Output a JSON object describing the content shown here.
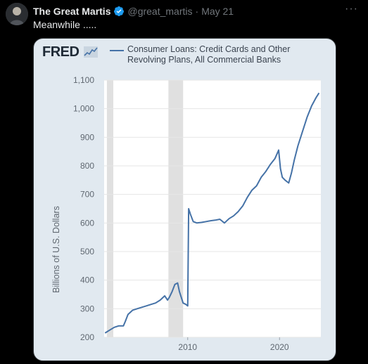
{
  "tweet": {
    "author_name": "The Great Martis",
    "handle": "@great_martis",
    "separator": "·",
    "date": "May 21",
    "text": "Meanwhile .....",
    "more_label": "···"
  },
  "colors": {
    "background": "#000000",
    "verified_badge": "#1d9bf0",
    "card_background": "#e1e9f0",
    "plot_background": "#ffffff",
    "series_line": "#4572a7",
    "recession_shade": "#e0e0e0"
  },
  "fred": {
    "logo_text": "FRED",
    "logo_mark": "spark-line-icon"
  },
  "chart_data": {
    "type": "line",
    "title": "Consumer Loans: Credit Cards and Other Revolving Plans, All Commercial Banks",
    "xlabel": "",
    "ylabel": "Billions of U.S. Dollars",
    "ylim": [
      200,
      1100
    ],
    "xlim": [
      2000.9,
      2024.5
    ],
    "y_ticks": [
      "200",
      "300",
      "400",
      "500",
      "600",
      "700",
      "800",
      "900",
      "1,000",
      "1,100"
    ],
    "x_ticks": [
      "2010",
      "2020"
    ],
    "grid": true,
    "recession_bands": [
      [
        2001.2,
        2001.9
      ],
      [
        2007.9,
        2009.5
      ]
    ],
    "series": [
      {
        "name": "Consumer Loans: Credit Cards and Other Revolving Plans, All Commercial Banks",
        "x": [
          2001.0,
          2001.5,
          2002.0,
          2002.5,
          2003.0,
          2003.2,
          2003.5,
          2004.0,
          2004.5,
          2005.0,
          2005.5,
          2006.0,
          2006.5,
          2007.0,
          2007.5,
          2007.8,
          2008.0,
          2008.3,
          2008.6,
          2008.9,
          2009.1,
          2009.3,
          2009.5,
          2009.8,
          2010.0,
          2010.1,
          2010.3,
          2010.6,
          2011.0,
          2011.5,
          2012.0,
          2012.5,
          2013.0,
          2013.5,
          2014.0,
          2014.5,
          2015.0,
          2015.5,
          2016.0,
          2016.5,
          2017.0,
          2017.5,
          2018.0,
          2018.5,
          2019.0,
          2019.5,
          2019.9,
          2020.1,
          2020.3,
          2020.6,
          2021.0,
          2021.3,
          2021.6,
          2022.0,
          2022.5,
          2023.0,
          2023.5,
          2024.0,
          2024.3
        ],
        "y": [
          215,
          225,
          235,
          240,
          240,
          255,
          280,
          295,
          300,
          305,
          310,
          315,
          320,
          330,
          345,
          330,
          340,
          360,
          385,
          390,
          360,
          340,
          320,
          315,
          310,
          650,
          630,
          605,
          600,
          602,
          605,
          608,
          610,
          613,
          600,
          615,
          625,
          640,
          660,
          690,
          715,
          730,
          760,
          780,
          805,
          825,
          855,
          790,
          760,
          750,
          740,
          775,
          820,
          870,
          920,
          970,
          1010,
          1040,
          1055
        ]
      }
    ]
  }
}
